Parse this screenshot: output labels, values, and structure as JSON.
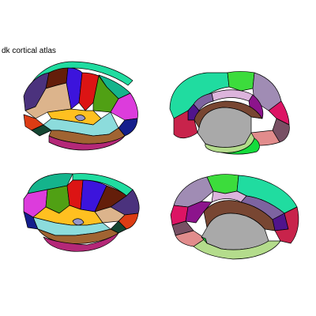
{
  "title": "dk cortical atlas",
  "colors": {
    "superiorfrontal": "#20DCA0",
    "rostralmiddlefrontal": "#4B327D",
    "caudalmiddlefrontal": "#641E0A",
    "precentral": "#3C14DC",
    "postcentral": "#DC1414",
    "parsopercularis": "#DCB48C",
    "parstriangularis": "#DC3C14",
    "parsorbitalis": "#144632",
    "lateralorbitofrontal": "#234B32",
    "supramarginal": "#50A014",
    "superiorparietal": "#14B48C",
    "inferiorparietal": "#DC3CDC",
    "lateraloccipital": "#141E8C",
    "superiortemporal": "#8CDCDC",
    "middletemporal": "#A06432",
    "inferiortemporal": "#B42878",
    "insula": "#FFC020",
    "transversetemporal": "#9696C8",
    "bankssts": "#196428",
    "paracentral": "#3CDC3C",
    "precuneus": "#A08CB4",
    "posteriorcingulate": "#DCB4DC",
    "isthmuscingulate": "#8C148C",
    "corpuscallosum": "#784632",
    "medialorbitofrontal": "#C8234B",
    "rostralanteriorcingulate": "#50148C",
    "caudalanteriorcingulate": "#7D64A0",
    "cuneus": "#DC1464",
    "lingual": "#E18C8C",
    "pericalcarine": "#785064",
    "fusiform": "#B4DC8C",
    "parahippocampal": "#14DC3C",
    "entorhinal": "#DC140A",
    "unknown": "#A9A9A9"
  }
}
